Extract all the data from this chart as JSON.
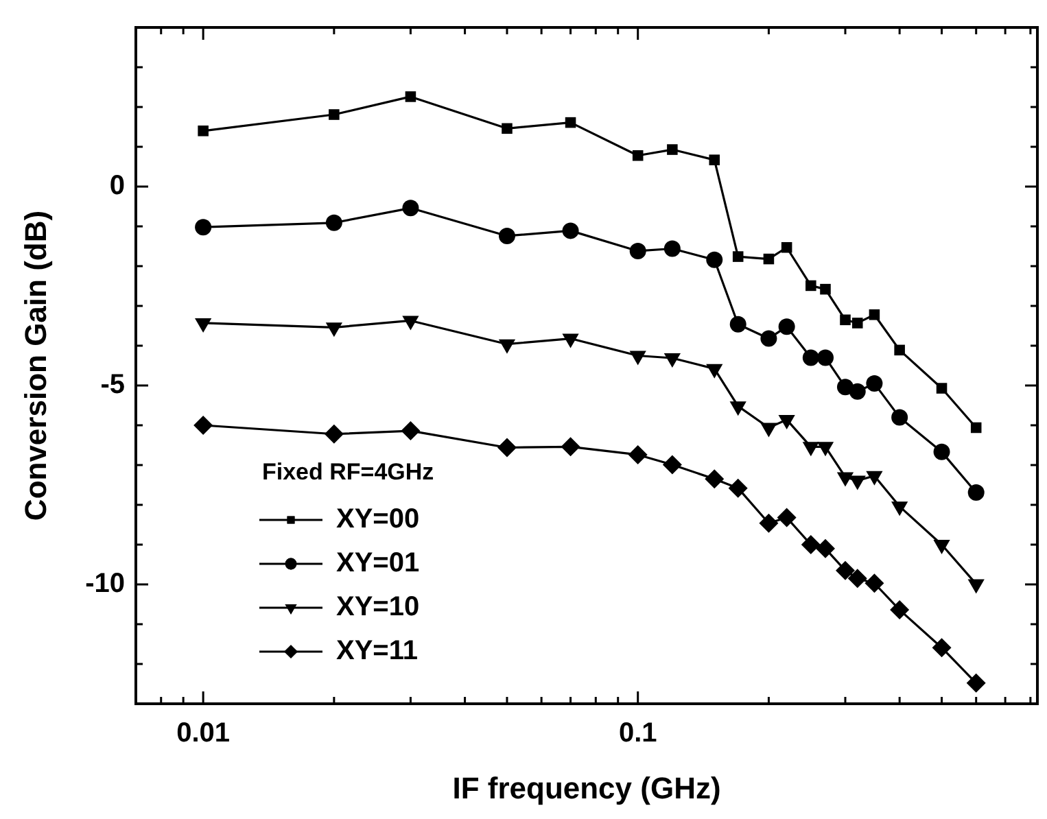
{
  "chart_data": {
    "type": "line",
    "xlabel": "IF frequency (GHz)",
    "ylabel": "Conversion Gain (dB)",
    "legend_title": "Fixed RF=4GHz",
    "legend": "bottom left",
    "log": "x",
    "grid": false,
    "line_style": "solid",
    "x": [
      0.01,
      0.02,
      0.03,
      0.05,
      0.07,
      0.1,
      0.12,
      0.15,
      0.17,
      0.2,
      0.22,
      0.25,
      0.27,
      0.3,
      0.32,
      0.35,
      0.4,
      0.5,
      0.6
    ],
    "xlim": [
      0.007,
      0.83
    ],
    "xticks": [
      {
        "value": 0.008,
        "label": null
      },
      {
        "value": 0.009,
        "label": null
      },
      0.01,
      {
        "value": 0.02,
        "label": null
      },
      {
        "value": 0.03,
        "label": null
      },
      {
        "value": 0.04,
        "label": null
      },
      {
        "value": 0.05,
        "label": null
      },
      {
        "value": 0.06,
        "label": null
      },
      {
        "value": 0.07,
        "label": null
      },
      {
        "value": 0.08,
        "label": null
      },
      {
        "value": 0.09,
        "label": null
      },
      0.1,
      {
        "value": 0.2,
        "label": null
      },
      {
        "value": 0.3,
        "label": null
      },
      {
        "value": 0.4,
        "label": null
      },
      {
        "value": 0.5,
        "label": null
      },
      {
        "value": 0.6,
        "label": null
      },
      {
        "value": 0.7,
        "label": null
      },
      {
        "value": 0.8,
        "label": null
      }
    ],
    "ylim": [
      -13,
      4
    ],
    "yticks": [
      {
        "value": -13,
        "label": null
      },
      {
        "value": -12,
        "label": null
      },
      {
        "value": -11,
        "label": null
      },
      -10,
      {
        "value": -9,
        "label": null
      },
      {
        "value": -8,
        "label": null
      },
      {
        "value": -7,
        "label": null
      },
      {
        "value": -6,
        "label": null
      },
      -5,
      {
        "value": -4,
        "label": null
      },
      {
        "value": -3,
        "label": null
      },
      {
        "value": -2,
        "label": null
      },
      {
        "value": -1,
        "label": null
      },
      0,
      {
        "value": 1,
        "label": null
      },
      {
        "value": 2,
        "label": null
      },
      {
        "value": 3,
        "label": null
      }
    ],
    "series": [
      {
        "name": "XY=00",
        "color": "#000000",
        "marker": "square",
        "values": [
          1.4,
          1.81,
          2.26,
          1.46,
          1.61,
          0.78,
          0.93,
          0.67,
          -1.76,
          -1.82,
          -1.53,
          -2.49,
          -2.58,
          -3.35,
          -3.43,
          -3.22,
          -4.11,
          -5.07,
          -6.06
        ]
      },
      {
        "name": "XY=01",
        "color": "#000000",
        "marker": "circle",
        "values": [
          -1.02,
          -0.91,
          -0.54,
          -1.24,
          -1.11,
          -1.62,
          -1.56,
          -1.84,
          -3.46,
          -3.82,
          -3.52,
          -4.3,
          -4.3,
          -5.04,
          -5.15,
          -4.95,
          -5.8,
          -6.67,
          -7.69
        ]
      },
      {
        "name": "XY=10",
        "color": "#000000",
        "marker": "triangle",
        "values": [
          -3.43,
          -3.54,
          -3.37,
          -3.96,
          -3.82,
          -4.25,
          -4.31,
          -4.58,
          -5.52,
          -6.06,
          -5.86,
          -6.54,
          -6.54,
          -7.3,
          -7.39,
          -7.27,
          -8.04,
          -9.0,
          -9.99
        ]
      },
      {
        "name": "XY=11",
        "color": "#000000",
        "marker": "diamond",
        "values": [
          -6.0,
          -6.22,
          -6.14,
          -6.56,
          -6.54,
          -6.74,
          -6.99,
          -7.35,
          -7.58,
          -8.46,
          -8.32,
          -9.0,
          -9.1,
          -9.65,
          -9.85,
          -9.97,
          -10.64,
          -11.59,
          -12.48
        ]
      }
    ]
  }
}
